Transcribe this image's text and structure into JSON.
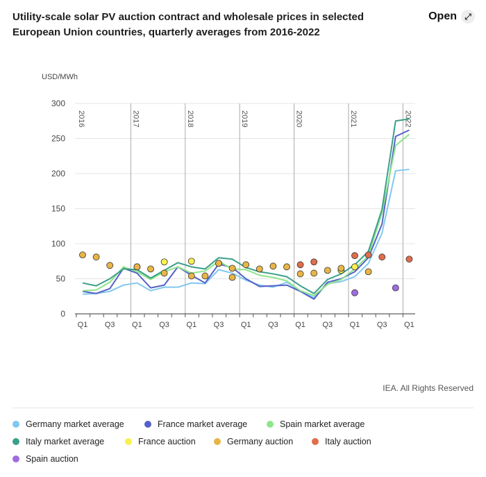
{
  "header": {
    "title": "Utility-scale solar PV auction contract and wholesale prices in selected European Union countries, quarterly averages from 2016-2022",
    "open_label": "Open"
  },
  "footer": {
    "rights": "IEA. All Rights Reserved"
  },
  "chart_data": {
    "type": "line",
    "ylabel": "USD/MWh",
    "ylim": [
      0,
      300
    ],
    "yticks": [
      0,
      50,
      100,
      150,
      200,
      250,
      300
    ],
    "years": [
      "2016",
      "2017",
      "2018",
      "2019",
      "2020",
      "2021",
      "2022"
    ],
    "categories": [
      "2016 Q1",
      "2016 Q2",
      "2016 Q3",
      "2016 Q4",
      "2017 Q1",
      "2017 Q2",
      "2017 Q3",
      "2017 Q4",
      "2018 Q1",
      "2018 Q2",
      "2018 Q3",
      "2018 Q4",
      "2019 Q1",
      "2019 Q2",
      "2019 Q3",
      "2019 Q4",
      "2020 Q1",
      "2020 Q2",
      "2020 Q3",
      "2020 Q4",
      "2021 Q1",
      "2021 Q2",
      "2021 Q3",
      "2021 Q4",
      "2022 Q1"
    ],
    "tick_labels": [
      "Q1",
      "",
      "Q3",
      "",
      "Q1",
      "",
      "Q3",
      "",
      "Q1",
      "",
      "Q3",
      "",
      "Q1",
      "",
      "Q3",
      "",
      "Q1",
      "",
      "Q3",
      "",
      "Q1",
      "",
      "Q3",
      "",
      "Q1"
    ],
    "series": [
      {
        "name": "Germany market average",
        "kind": "line",
        "color": "#80c8f0",
        "values": [
          28,
          29,
          32,
          41,
          44,
          33,
          38,
          38,
          44,
          43,
          63,
          58,
          48,
          41,
          38,
          45,
          33,
          23,
          43,
          46,
          53,
          72,
          115,
          204,
          206
        ]
      },
      {
        "name": "France market average",
        "kind": "line",
        "color": "#5561c8",
        "values": [
          32,
          29,
          36,
          65,
          58,
          37,
          41,
          67,
          55,
          44,
          71,
          66,
          50,
          39,
          40,
          41,
          32,
          21,
          45,
          50,
          60,
          80,
          128,
          253,
          262
        ]
      },
      {
        "name": "Spain market average",
        "kind": "line",
        "color": "#8ee58a",
        "values": [
          33,
          34,
          45,
          67,
          60,
          49,
          60,
          67,
          58,
          61,
          75,
          64,
          63,
          55,
          52,
          47,
          33,
          26,
          42,
          49,
          64,
          83,
          144,
          240,
          256
        ]
      },
      {
        "name": "Italy market average",
        "kind": "line",
        "color": "#3a9f88",
        "values": [
          44,
          40,
          50,
          64,
          63,
          51,
          62,
          73,
          67,
          64,
          80,
          78,
          66,
          60,
          57,
          53,
          40,
          29,
          49,
          57,
          70,
          89,
          149,
          275,
          278
        ]
      },
      {
        "name": "France auction",
        "kind": "dots",
        "color": "#f8f050",
        "points": [
          [
            4,
            67
          ],
          [
            6,
            74
          ],
          [
            8,
            75
          ],
          [
            10,
            72
          ],
          [
            19,
            62
          ],
          [
            20,
            67
          ]
        ]
      },
      {
        "name": "Germany auction",
        "kind": "dots",
        "color": "#e8b548",
        "points": [
          [
            0,
            84
          ],
          [
            1,
            81
          ],
          [
            2,
            69
          ],
          [
            4,
            67
          ],
          [
            5,
            64
          ],
          [
            6,
            58
          ],
          [
            8,
            54
          ],
          [
            9,
            54
          ],
          [
            10,
            72
          ],
          [
            11,
            65
          ],
          [
            11,
            52
          ],
          [
            12,
            70
          ],
          [
            13,
            64
          ],
          [
            14,
            68
          ],
          [
            15,
            67
          ],
          [
            16,
            57
          ],
          [
            17,
            58
          ],
          [
            18,
            62
          ],
          [
            19,
            65
          ],
          [
            21,
            60
          ]
        ]
      },
      {
        "name": "Italy auction",
        "kind": "dots",
        "color": "#e06d4c",
        "points": [
          [
            16,
            70
          ],
          [
            17,
            74
          ],
          [
            20,
            83
          ],
          [
            21,
            84
          ],
          [
            22,
            81
          ],
          [
            24,
            78
          ]
        ]
      },
      {
        "name": "Spain auction",
        "kind": "dots",
        "color": "#9e6de0",
        "points": [
          [
            20,
            30
          ],
          [
            23,
            37
          ]
        ]
      }
    ],
    "legend_position": "bottom",
    "grid": true
  }
}
